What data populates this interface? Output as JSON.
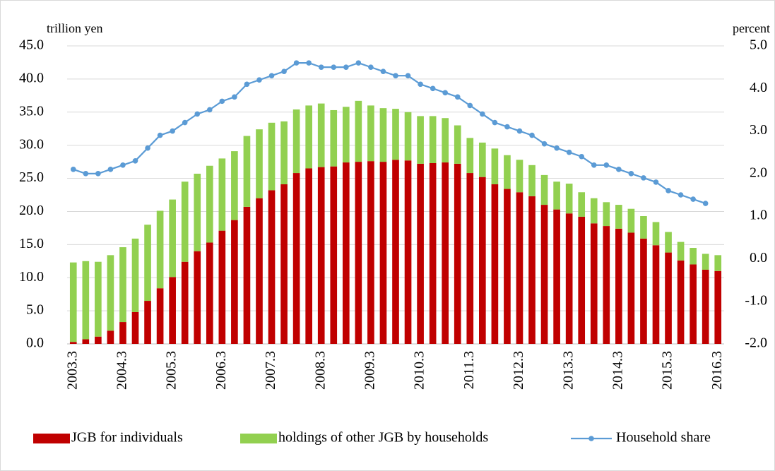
{
  "chart_data": {
    "type": "bar",
    "stacked": true,
    "y_label": "trillion yen",
    "y2_label": "percent",
    "categories": [
      "2003.3",
      null,
      null,
      null,
      "2004.3",
      null,
      null,
      null,
      "2005.3",
      null,
      null,
      null,
      "2006.3",
      null,
      null,
      null,
      "2007.3",
      null,
      null,
      null,
      "2008.3",
      null,
      null,
      null,
      "2009.3",
      null,
      null,
      null,
      "2010.3",
      null,
      null,
      null,
      "2011.3",
      null,
      null,
      null,
      "2012.3",
      null,
      null,
      null,
      "2013.3",
      null,
      null,
      null,
      "2014.3",
      null,
      null,
      null,
      "2015.3",
      null,
      null,
      null,
      "2016.3"
    ],
    "series": [
      {
        "name": "JGB for individuals",
        "color": "#c00000",
        "values": [
          0.3,
          0.7,
          1.1,
          2.0,
          3.3,
          4.8,
          6.5,
          8.4,
          10.1,
          12.4,
          14.0,
          15.3,
          17.1,
          18.7,
          20.7,
          22.0,
          23.2,
          24.1,
          25.8,
          26.5,
          26.7,
          26.8,
          27.4,
          27.5,
          27.6,
          27.5,
          27.8,
          27.7,
          27.2,
          27.3,
          27.4,
          27.2,
          25.8,
          25.2,
          24.1,
          23.4,
          22.9,
          22.3,
          21.0,
          20.3,
          19.7,
          19.2,
          18.2,
          17.8,
          17.4,
          16.8,
          15.9,
          14.9,
          13.8,
          12.6,
          12.0,
          11.2,
          11.0
        ]
      },
      {
        "name": "holdings of other JGB by households",
        "color": "#92d050",
        "values": [
          12.0,
          11.8,
          11.3,
          11.4,
          11.3,
          11.1,
          11.5,
          11.7,
          11.7,
          12.1,
          11.7,
          11.6,
          10.9,
          10.4,
          10.7,
          10.4,
          10.2,
          9.5,
          9.6,
          9.5,
          9.6,
          8.5,
          8.4,
          9.2,
          8.4,
          8.1,
          7.7,
          7.3,
          7.2,
          7.1,
          6.7,
          5.8,
          5.3,
          5.2,
          5.4,
          5.1,
          4.9,
          4.7,
          4.5,
          4.2,
          4.5,
          3.7,
          3.8,
          3.6,
          3.6,
          3.6,
          3.4,
          3.5,
          3.1,
          2.8,
          2.5,
          2.4,
          2.4
        ]
      },
      {
        "name": "Household share",
        "color": "#5b9bd5",
        "type": "line",
        "axis": "y2",
        "values": [
          2.1,
          2.0,
          2.0,
          2.1,
          2.2,
          2.3,
          2.6,
          2.9,
          3.0,
          3.2,
          3.4,
          3.5,
          3.7,
          3.8,
          4.1,
          4.2,
          4.3,
          4.4,
          4.6,
          4.6,
          4.5,
          4.5,
          4.5,
          4.6,
          4.5,
          4.4,
          4.3,
          4.3,
          4.1,
          4.0,
          3.9,
          3.8,
          3.6,
          3.4,
          3.2,
          3.1,
          3.0,
          2.9,
          2.7,
          2.6,
          2.5,
          2.4,
          2.2,
          2.2,
          2.1,
          2.0,
          1.9,
          1.8,
          1.6,
          1.5,
          1.4,
          1.3,
          null
        ]
      }
    ],
    "ylim": [
      0,
      45
    ],
    "yticks": [
      {
        "value": 0,
        "label": "0.0"
      },
      {
        "value": 5,
        "label": "5.0"
      },
      {
        "value": 10,
        "label": "10.0"
      },
      {
        "value": 15,
        "label": "15.0"
      },
      {
        "value": 20,
        "label": "20.0"
      },
      {
        "value": 25,
        "label": "25.0"
      },
      {
        "value": 30,
        "label": "30.0"
      },
      {
        "value": 35,
        "label": "35.0"
      },
      {
        "value": 40,
        "label": "40.0"
      },
      {
        "value": 45,
        "label": "45.0"
      }
    ],
    "y2lim": [
      -2,
      5
    ],
    "y2ticks": [
      {
        "value": -2,
        "label": "-2.0"
      },
      {
        "value": -1,
        "label": "-1.0"
      },
      {
        "value": 0,
        "label": "0.0"
      },
      {
        "value": 1,
        "label": "1.0"
      },
      {
        "value": 2,
        "label": "2.0"
      },
      {
        "value": 3,
        "label": "3.0"
      },
      {
        "value": 4,
        "label": "4.0"
      },
      {
        "value": 5,
        "label": "5.0"
      }
    ],
    "grid": true,
    "legend": "bottom"
  }
}
